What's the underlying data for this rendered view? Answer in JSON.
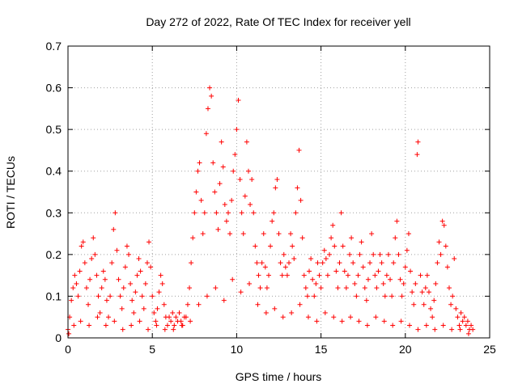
{
  "chart_data": {
    "type": "scatter",
    "title": "Day 272 of 2022, Rate Of TEC Index for receiver yell",
    "xlabel": "GPS time / hours",
    "ylabel": "ROTI / TECUs",
    "xlim": [
      0,
      25
    ],
    "ylim": [
      0,
      0.7
    ],
    "x_ticks": [
      0,
      5,
      10,
      15,
      20,
      25
    ],
    "x_tick_labels": [
      "0",
      "5",
      "10",
      "15",
      "20",
      "25"
    ],
    "y_ticks": [
      0,
      0.1,
      0.2,
      0.3,
      0.4,
      0.5,
      0.6,
      0.7
    ],
    "y_tick_labels": [
      "0",
      "0.1",
      "0.2",
      "0.3",
      "0.4",
      "0.5",
      "0.6",
      "0.7"
    ],
    "grid": true,
    "marker": "+",
    "color": "#ff0000",
    "series": [
      {
        "points": [
          [
            0.0,
            0.02
          ],
          [
            0.1,
            0.05
          ],
          [
            0.2,
            0.09
          ],
          [
            0.3,
            0.12
          ],
          [
            0.4,
            0.15
          ],
          [
            0.5,
            0.13
          ],
          [
            0.6,
            0.1
          ],
          [
            0.7,
            0.16
          ],
          [
            0.8,
            0.22
          ],
          [
            0.9,
            0.23
          ],
          [
            1.0,
            0.18
          ],
          [
            1.1,
            0.12
          ],
          [
            1.2,
            0.08
          ],
          [
            1.3,
            0.14
          ],
          [
            1.4,
            0.19
          ],
          [
            1.5,
            0.24
          ],
          [
            1.6,
            0.2
          ],
          [
            1.7,
            0.15
          ],
          [
            1.8,
            0.1
          ],
          [
            1.9,
            0.06
          ],
          [
            2.0,
            0.12
          ],
          [
            2.1,
            0.16
          ],
          [
            2.2,
            0.14
          ],
          [
            2.3,
            0.09
          ],
          [
            2.4,
            0.05
          ],
          [
            2.5,
            0.1
          ],
          [
            2.6,
            0.18
          ],
          [
            2.7,
            0.26
          ],
          [
            2.8,
            0.3
          ],
          [
            2.9,
            0.21
          ],
          [
            3.0,
            0.14
          ],
          [
            3.1,
            0.1
          ],
          [
            3.2,
            0.07
          ],
          [
            3.3,
            0.12
          ],
          [
            3.4,
            0.17
          ],
          [
            3.5,
            0.22
          ],
          [
            3.6,
            0.2
          ],
          [
            3.7,
            0.13
          ],
          [
            3.8,
            0.09
          ],
          [
            3.9,
            0.06
          ],
          [
            4.0,
            0.11
          ],
          [
            4.1,
            0.15
          ],
          [
            4.2,
            0.19
          ],
          [
            4.3,
            0.16
          ],
          [
            4.4,
            0.1
          ],
          [
            4.5,
            0.07
          ],
          [
            4.6,
            0.13
          ],
          [
            4.7,
            0.18
          ],
          [
            4.8,
            0.23
          ],
          [
            4.9,
            0.17
          ],
          [
            5.0,
            0.1
          ],
          [
            5.1,
            0.06
          ],
          [
            5.2,
            0.04
          ],
          [
            5.3,
            0.07
          ],
          [
            5.4,
            0.11
          ],
          [
            5.5,
            0.15
          ],
          [
            5.6,
            0.13
          ],
          [
            5.7,
            0.08
          ],
          [
            5.8,
            0.05
          ],
          [
            5.9,
            0.03
          ],
          [
            6.0,
            0.05
          ],
          [
            6.1,
            0.04
          ],
          [
            6.2,
            0.06
          ],
          [
            6.3,
            0.03
          ],
          [
            6.4,
            0.05
          ],
          [
            6.5,
            0.04
          ],
          [
            6.6,
            0.06
          ],
          [
            6.7,
            0.04
          ],
          [
            6.8,
            0.03
          ],
          [
            6.9,
            0.05
          ],
          [
            7.0,
            0.05
          ],
          [
            7.1,
            0.08
          ],
          [
            7.2,
            0.12
          ],
          [
            7.3,
            0.18
          ],
          [
            7.4,
            0.24
          ],
          [
            7.5,
            0.3
          ],
          [
            7.6,
            0.35
          ],
          [
            7.7,
            0.4
          ],
          [
            7.8,
            0.42
          ],
          [
            7.9,
            0.33
          ],
          [
            8.0,
            0.25
          ],
          [
            8.1,
            0.3
          ],
          [
            8.2,
            0.49
          ],
          [
            8.3,
            0.55
          ],
          [
            8.4,
            0.6
          ],
          [
            8.5,
            0.58
          ],
          [
            8.6,
            0.42
          ],
          [
            8.7,
            0.35
          ],
          [
            8.8,
            0.3
          ],
          [
            8.9,
            0.26
          ],
          [
            9.0,
            0.37
          ],
          [
            9.1,
            0.47
          ],
          [
            9.2,
            0.41
          ],
          [
            9.3,
            0.32
          ],
          [
            9.4,
            0.28
          ],
          [
            9.5,
            0.3
          ],
          [
            9.6,
            0.25
          ],
          [
            9.7,
            0.33
          ],
          [
            9.8,
            0.4
          ],
          [
            9.9,
            0.44
          ],
          [
            10.0,
            0.5
          ],
          [
            10.1,
            0.57
          ],
          [
            10.2,
            0.38
          ],
          [
            10.3,
            0.3
          ],
          [
            10.4,
            0.25
          ],
          [
            10.5,
            0.34
          ],
          [
            10.6,
            0.47
          ],
          [
            10.7,
            0.4
          ],
          [
            10.8,
            0.32
          ],
          [
            10.9,
            0.38
          ],
          [
            11.0,
            0.3
          ],
          [
            11.1,
            0.22
          ],
          [
            11.2,
            0.18
          ],
          [
            11.3,
            0.15
          ],
          [
            11.4,
            0.12
          ],
          [
            11.5,
            0.18
          ],
          [
            11.6,
            0.25
          ],
          [
            11.7,
            0.17
          ],
          [
            11.8,
            0.12
          ],
          [
            11.9,
            0.15
          ],
          [
            12.0,
            0.22
          ],
          [
            12.1,
            0.28
          ],
          [
            12.2,
            0.3
          ],
          [
            12.3,
            0.36
          ],
          [
            12.4,
            0.38
          ],
          [
            12.5,
            0.25
          ],
          [
            12.6,
            0.18
          ],
          [
            12.7,
            0.15
          ],
          [
            12.8,
            0.2
          ],
          [
            12.9,
            0.17
          ],
          [
            13.0,
            0.15
          ],
          [
            13.1,
            0.18
          ],
          [
            13.2,
            0.25
          ],
          [
            13.3,
            0.22
          ],
          [
            13.4,
            0.19
          ],
          [
            13.5,
            0.3
          ],
          [
            13.6,
            0.36
          ],
          [
            13.7,
            0.45
          ],
          [
            13.8,
            0.33
          ],
          [
            13.9,
            0.24
          ],
          [
            14.0,
            0.15
          ],
          [
            14.1,
            0.12
          ],
          [
            14.2,
            0.1
          ],
          [
            14.3,
            0.16
          ],
          [
            14.4,
            0.19
          ],
          [
            14.5,
            0.14
          ],
          [
            14.6,
            0.1
          ],
          [
            14.7,
            0.13
          ],
          [
            14.8,
            0.18
          ],
          [
            14.9,
            0.15
          ],
          [
            15.0,
            0.12
          ],
          [
            15.1,
            0.18
          ],
          [
            15.2,
            0.21
          ],
          [
            15.3,
            0.19
          ],
          [
            15.4,
            0.15
          ],
          [
            15.5,
            0.2
          ],
          [
            15.6,
            0.24
          ],
          [
            15.7,
            0.27
          ],
          [
            15.8,
            0.22
          ],
          [
            15.9,
            0.16
          ],
          [
            16.0,
            0.12
          ],
          [
            16.1,
            0.18
          ],
          [
            16.2,
            0.3
          ],
          [
            16.3,
            0.22
          ],
          [
            16.4,
            0.16
          ],
          [
            16.5,
            0.12
          ],
          [
            16.6,
            0.15
          ],
          [
            16.7,
            0.2
          ],
          [
            16.8,
            0.24
          ],
          [
            16.9,
            0.18
          ],
          [
            17.0,
            0.13
          ],
          [
            17.1,
            0.1
          ],
          [
            17.2,
            0.15
          ],
          [
            17.3,
            0.2
          ],
          [
            17.4,
            0.23
          ],
          [
            17.5,
            0.17
          ],
          [
            17.6,
            0.12
          ],
          [
            17.7,
            0.09
          ],
          [
            17.8,
            0.14
          ],
          [
            17.9,
            0.18
          ],
          [
            18.0,
            0.25
          ],
          [
            18.1,
            0.2
          ],
          [
            18.2,
            0.15
          ],
          [
            18.3,
            0.12
          ],
          [
            18.4,
            0.16
          ],
          [
            18.5,
            0.2
          ],
          [
            18.6,
            0.18
          ],
          [
            18.7,
            0.13
          ],
          [
            18.8,
            0.1
          ],
          [
            18.9,
            0.15
          ],
          [
            19.0,
            0.2
          ],
          [
            19.1,
            0.14
          ],
          [
            19.2,
            0.1
          ],
          [
            19.3,
            0.18
          ],
          [
            19.4,
            0.24
          ],
          [
            19.5,
            0.28
          ],
          [
            19.6,
            0.2
          ],
          [
            19.7,
            0.14
          ],
          [
            19.8,
            0.1
          ],
          [
            19.9,
            0.13
          ],
          [
            20.0,
            0.17
          ],
          [
            20.1,
            0.21
          ],
          [
            20.2,
            0.25
          ],
          [
            20.3,
            0.16
          ],
          [
            20.4,
            0.11
          ],
          [
            20.5,
            0.08
          ],
          [
            20.6,
            0.13
          ],
          [
            20.7,
            0.44
          ],
          [
            20.75,
            0.47
          ],
          [
            20.9,
            0.15
          ],
          [
            21.0,
            0.11
          ],
          [
            21.1,
            0.08
          ],
          [
            21.2,
            0.12
          ],
          [
            21.3,
            0.15
          ],
          [
            21.4,
            0.11
          ],
          [
            21.5,
            0.07
          ],
          [
            21.6,
            0.05
          ],
          [
            21.7,
            0.09
          ],
          [
            21.8,
            0.13
          ],
          [
            21.9,
            0.18
          ],
          [
            22.0,
            0.23
          ],
          [
            22.1,
            0.2
          ],
          [
            22.2,
            0.28
          ],
          [
            22.3,
            0.27
          ],
          [
            22.4,
            0.22
          ],
          [
            22.5,
            0.17
          ],
          [
            22.6,
            0.12
          ],
          [
            22.7,
            0.08
          ],
          [
            22.8,
            0.1
          ],
          [
            22.9,
            0.19
          ],
          [
            23.0,
            0.07
          ],
          [
            23.1,
            0.05
          ],
          [
            23.2,
            0.03
          ],
          [
            23.3,
            0.06
          ],
          [
            23.4,
            0.04
          ],
          [
            23.5,
            0.05
          ],
          [
            23.6,
            0.03
          ],
          [
            23.7,
            0.04
          ],
          [
            23.8,
            0.02
          ],
          [
            23.9,
            0.03
          ],
          [
            0.05,
            0.01
          ],
          [
            0.35,
            0.03
          ],
          [
            0.75,
            0.04
          ],
          [
            1.25,
            0.03
          ],
          [
            1.75,
            0.05
          ],
          [
            2.25,
            0.03
          ],
          [
            2.75,
            0.04
          ],
          [
            3.25,
            0.02
          ],
          [
            3.75,
            0.03
          ],
          [
            4.25,
            0.04
          ],
          [
            4.75,
            0.02
          ],
          [
            5.25,
            0.03
          ],
          [
            5.75,
            0.02
          ],
          [
            6.25,
            0.02
          ],
          [
            6.75,
            0.03
          ],
          [
            7.25,
            0.04
          ],
          [
            7.75,
            0.08
          ],
          [
            8.25,
            0.1
          ],
          [
            8.75,
            0.12
          ],
          [
            9.25,
            0.09
          ],
          [
            9.75,
            0.14
          ],
          [
            10.25,
            0.11
          ],
          [
            10.75,
            0.13
          ],
          [
            11.25,
            0.08
          ],
          [
            11.75,
            0.06
          ],
          [
            12.25,
            0.07
          ],
          [
            12.75,
            0.05
          ],
          [
            13.25,
            0.06
          ],
          [
            13.75,
            0.08
          ],
          [
            14.25,
            0.05
          ],
          [
            14.75,
            0.04
          ],
          [
            15.25,
            0.06
          ],
          [
            15.75,
            0.05
          ],
          [
            16.25,
            0.04
          ],
          [
            16.75,
            0.05
          ],
          [
            17.25,
            0.04
          ],
          [
            17.75,
            0.03
          ],
          [
            18.25,
            0.05
          ],
          [
            18.75,
            0.04
          ],
          [
            19.25,
            0.03
          ],
          [
            19.75,
            0.04
          ],
          [
            20.25,
            0.03
          ],
          [
            20.75,
            0.02
          ],
          [
            21.25,
            0.03
          ],
          [
            21.75,
            0.02
          ],
          [
            22.25,
            0.03
          ],
          [
            22.75,
            0.02
          ],
          [
            23.25,
            0.02
          ],
          [
            23.75,
            0.01
          ],
          [
            24.0,
            0.02
          ]
        ]
      }
    ]
  }
}
